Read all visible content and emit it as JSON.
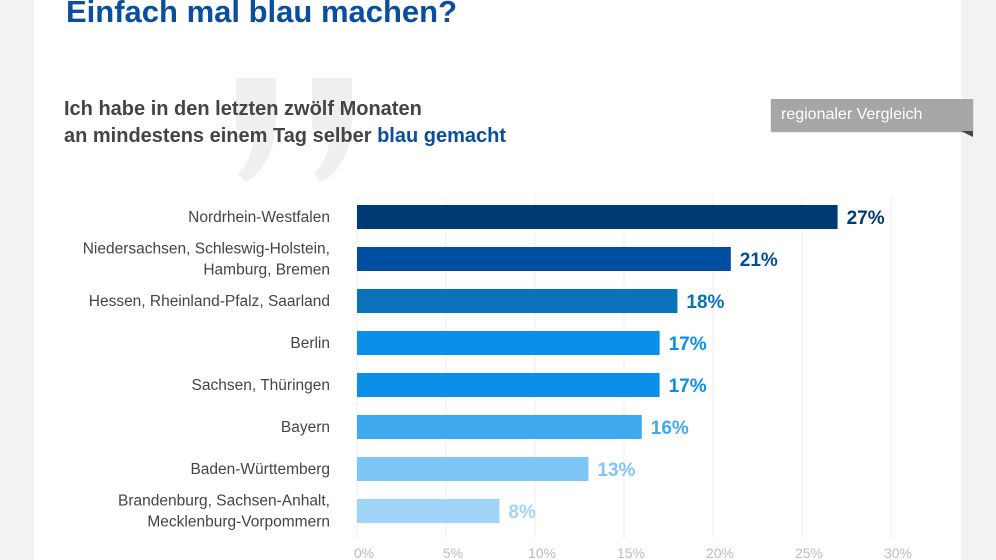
{
  "header": {
    "title": "Einfach mal blau machen?",
    "subtitle_line1": "Ich habe in den letzten zwölf Monaten",
    "subtitle_line2_prefix": "an mindestens einem Tag selber ",
    "subtitle_line2_highlight": "blau gemacht",
    "badge": "regionaler Vergleich"
  },
  "colors": {
    "title": "#0a4ea0",
    "badge": "#a6a6a6"
  },
  "chart_data": {
    "type": "bar",
    "orientation": "horizontal",
    "categories": [
      [
        "Nordrhein-Westfalen"
      ],
      [
        "Niedersachsen, Schleswig-Holstein,",
        "Hamburg, Bremen"
      ],
      [
        "Hessen, Rheinland-Pfalz, Saarland"
      ],
      [
        "Berlin"
      ],
      [
        "Sachsen, Thüringen"
      ],
      [
        "Bayern"
      ],
      [
        "Baden-Württemberg"
      ],
      [
        "Brandenburg, Sachsen-Anhalt,",
        "Mecklenburg-Vorpommern"
      ]
    ],
    "values": [
      27,
      21,
      18,
      17,
      17,
      16,
      13,
      8
    ],
    "data_labels": [
      "27%",
      "21%",
      "18%",
      "17%",
      "17%",
      "16%",
      "13%",
      "8%"
    ],
    "colors": [
      "#003a75",
      "#004e9f",
      "#0a72b9",
      "#0a90e8",
      "#0a90e8",
      "#40aaf0",
      "#7dc6f7",
      "#a0d4f8"
    ],
    "xticks": [
      0,
      5,
      10,
      15,
      20,
      25,
      30
    ],
    "xtick_labels": [
      "0%",
      "5%",
      "10%",
      "15%",
      "20%",
      "25%",
      "30%"
    ],
    "xlim": [
      0,
      30
    ],
    "grid": true
  }
}
